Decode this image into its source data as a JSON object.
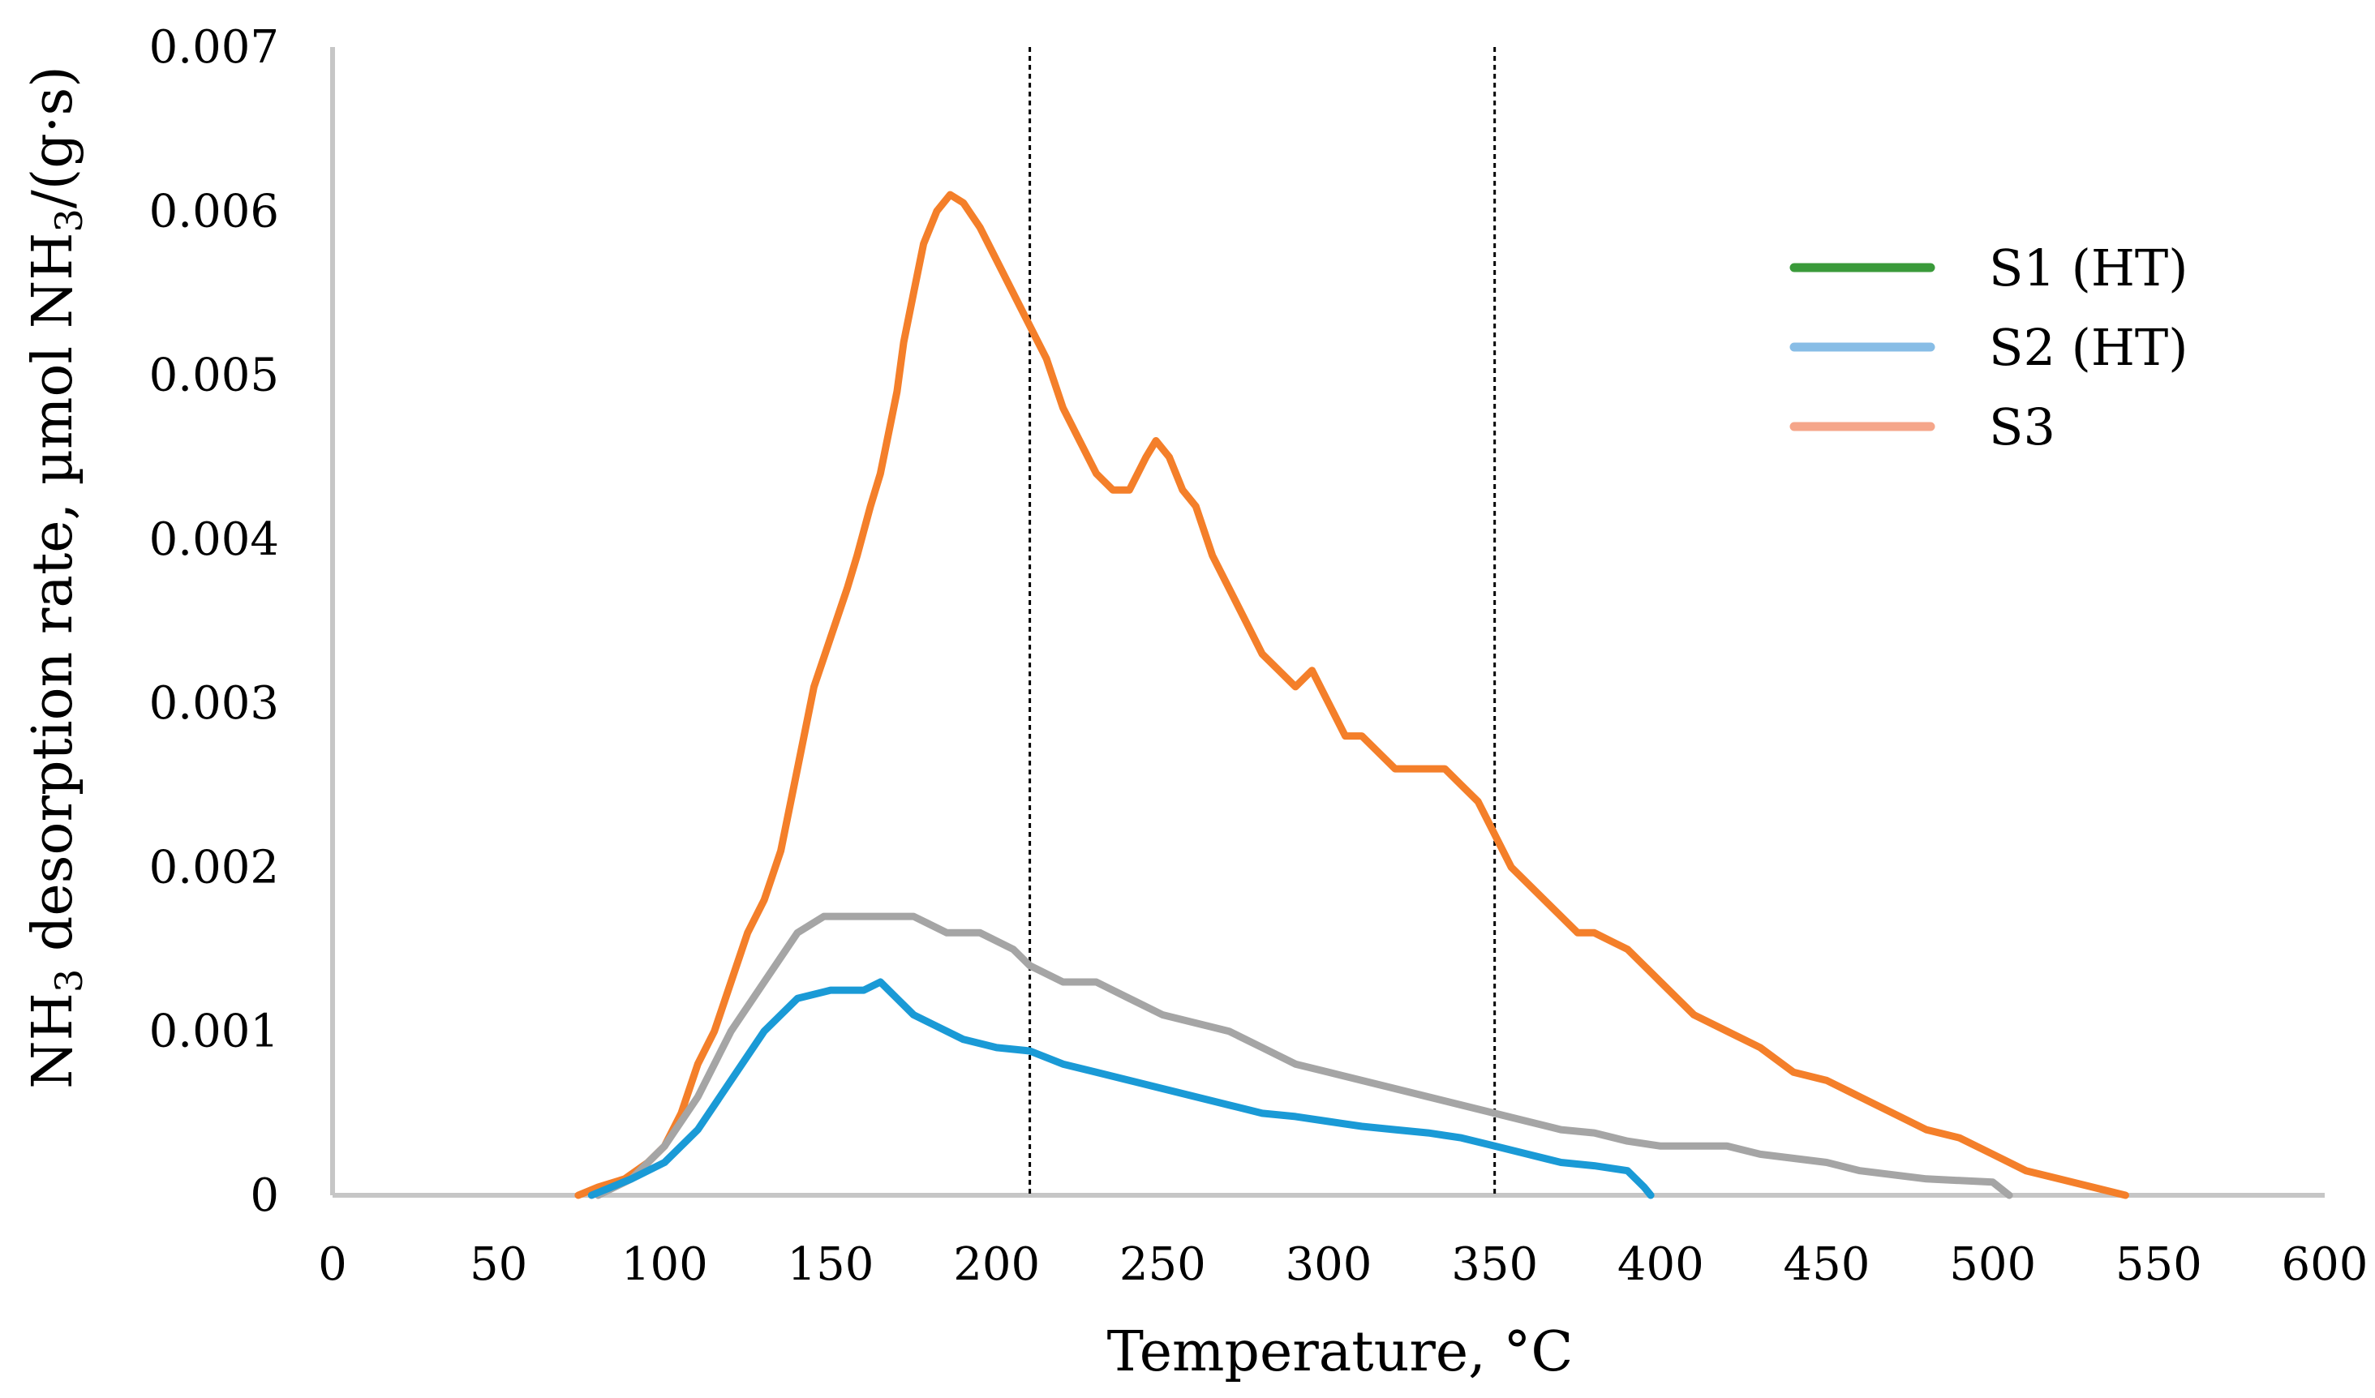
{
  "chart_data": {
    "type": "line",
    "xlabel": "Temperature, °C",
    "ylabel": {
      "parts": [
        {
          "text": "NH",
          "sub": false
        },
        {
          "text": "3",
          "sub": true
        },
        {
          "text": " desorption rate, µmol NH",
          "sub": false
        },
        {
          "text": "3",
          "sub": true
        },
        {
          "text": "/(g·s)",
          "sub": false
        }
      ]
    },
    "xlim": [
      0,
      600
    ],
    "ylim": [
      0,
      0.007
    ],
    "xticks": [
      0,
      50,
      100,
      150,
      200,
      250,
      300,
      350,
      400,
      450,
      500,
      550,
      600
    ],
    "yticks": [
      0,
      0.001,
      0.002,
      0.003,
      0.004,
      0.005,
      0.006,
      0.007
    ],
    "xtick_labels": [
      "0",
      "50",
      "100",
      "150",
      "200",
      "250",
      "300",
      "350",
      "400",
      "450",
      "500",
      "550",
      "600"
    ],
    "ytick_labels": [
      "0",
      "0.001",
      "0.002",
      "0.003",
      "0.004",
      "0.005",
      "0.006",
      "0.007"
    ],
    "vlines": [
      210,
      350
    ],
    "legend_position": "right",
    "legend": [
      {
        "label": "S1 (HT)",
        "color": "#3a9a3a"
      },
      {
        "label": "S2 (HT)",
        "color": "#88bde6"
      },
      {
        "label": "S3",
        "color": "#f5a68a"
      }
    ],
    "series": [
      {
        "name": "orange",
        "color": "#f47f2a",
        "points": [
          [
            74,
            0
          ],
          [
            80,
            5e-05
          ],
          [
            88,
            0.0001
          ],
          [
            95,
            0.0002
          ],
          [
            100,
            0.0003
          ],
          [
            105,
            0.0005
          ],
          [
            110,
            0.0008
          ],
          [
            115,
            0.001
          ],
          [
            120,
            0.0013
          ],
          [
            125,
            0.0016
          ],
          [
            130,
            0.0018
          ],
          [
            135,
            0.0021
          ],
          [
            140,
            0.0026
          ],
          [
            145,
            0.0031
          ],
          [
            150,
            0.0034
          ],
          [
            155,
            0.0037
          ],
          [
            158,
            0.0039
          ],
          [
            162,
            0.0042
          ],
          [
            165,
            0.0044
          ],
          [
            168,
            0.0047
          ],
          [
            170,
            0.0049
          ],
          [
            172,
            0.0052
          ],
          [
            175,
            0.0055
          ],
          [
            178,
            0.0058
          ],
          [
            182,
            0.006
          ],
          [
            186,
            0.0061
          ],
          [
            190,
            0.00605
          ],
          [
            195,
            0.0059
          ],
          [
            200,
            0.0057
          ],
          [
            205,
            0.0055
          ],
          [
            210,
            0.0053
          ],
          [
            215,
            0.0051
          ],
          [
            220,
            0.0048
          ],
          [
            225,
            0.0046
          ],
          [
            230,
            0.0044
          ],
          [
            235,
            0.0043
          ],
          [
            240,
            0.0043
          ],
          [
            245,
            0.0045
          ],
          [
            248,
            0.0046
          ],
          [
            252,
            0.0045
          ],
          [
            256,
            0.0043
          ],
          [
            260,
            0.0042
          ],
          [
            265,
            0.0039
          ],
          [
            270,
            0.0037
          ],
          [
            275,
            0.0035
          ],
          [
            280,
            0.0033
          ],
          [
            285,
            0.0032
          ],
          [
            290,
            0.0031
          ],
          [
            295,
            0.0032
          ],
          [
            300,
            0.003
          ],
          [
            305,
            0.0028
          ],
          [
            310,
            0.0028
          ],
          [
            315,
            0.0027
          ],
          [
            320,
            0.0026
          ],
          [
            325,
            0.0026
          ],
          [
            330,
            0.0026
          ],
          [
            335,
            0.0026
          ],
          [
            340,
            0.0025
          ],
          [
            345,
            0.0024
          ],
          [
            350,
            0.0022
          ],
          [
            355,
            0.002
          ],
          [
            360,
            0.0019
          ],
          [
            365,
            0.0018
          ],
          [
            370,
            0.0017
          ],
          [
            375,
            0.0016
          ],
          [
            380,
            0.0016
          ],
          [
            385,
            0.00155
          ],
          [
            390,
            0.0015
          ],
          [
            395,
            0.0014
          ],
          [
            400,
            0.0013
          ],
          [
            410,
            0.0011
          ],
          [
            420,
            0.001
          ],
          [
            430,
            0.0009
          ],
          [
            440,
            0.00075
          ],
          [
            450,
            0.0007
          ],
          [
            460,
            0.0006
          ],
          [
            470,
            0.0005
          ],
          [
            480,
            0.0004
          ],
          [
            490,
            0.00035
          ],
          [
            500,
            0.00025
          ],
          [
            510,
            0.00015
          ],
          [
            520,
            0.0001
          ],
          [
            530,
            5e-05
          ],
          [
            540,
            0
          ]
        ]
      },
      {
        "name": "gray",
        "color": "#a5a5a5",
        "points": [
          [
            80,
            0
          ],
          [
            90,
            0.0001
          ],
          [
            100,
            0.0003
          ],
          [
            110,
            0.0006
          ],
          [
            120,
            0.001
          ],
          [
            130,
            0.0013
          ],
          [
            140,
            0.0016
          ],
          [
            148,
            0.0017
          ],
          [
            155,
            0.0017
          ],
          [
            165,
            0.0017
          ],
          [
            175,
            0.0017
          ],
          [
            185,
            0.0016
          ],
          [
            195,
            0.0016
          ],
          [
            205,
            0.0015
          ],
          [
            210,
            0.0014
          ],
          [
            220,
            0.0013
          ],
          [
            230,
            0.0013
          ],
          [
            240,
            0.0012
          ],
          [
            250,
            0.0011
          ],
          [
            260,
            0.00105
          ],
          [
            270,
            0.001
          ],
          [
            280,
            0.0009
          ],
          [
            290,
            0.0008
          ],
          [
            300,
            0.00075
          ],
          [
            310,
            0.0007
          ],
          [
            320,
            0.00065
          ],
          [
            330,
            0.0006
          ],
          [
            340,
            0.00055
          ],
          [
            350,
            0.0005
          ],
          [
            360,
            0.00045
          ],
          [
            370,
            0.0004
          ],
          [
            380,
            0.00038
          ],
          [
            390,
            0.00033
          ],
          [
            400,
            0.0003
          ],
          [
            420,
            0.0003
          ],
          [
            430,
            0.00025
          ],
          [
            450,
            0.0002
          ],
          [
            460,
            0.00015
          ],
          [
            480,
            0.0001
          ],
          [
            500,
            8e-05
          ],
          [
            505,
            0
          ]
        ]
      },
      {
        "name": "blue",
        "color": "#1a9ad6",
        "points": [
          [
            78,
            0
          ],
          [
            90,
            0.0001
          ],
          [
            100,
            0.0002
          ],
          [
            110,
            0.0004
          ],
          [
            120,
            0.0007
          ],
          [
            130,
            0.001
          ],
          [
            140,
            0.0012
          ],
          [
            150,
            0.00125
          ],
          [
            160,
            0.00125
          ],
          [
            165,
            0.0013
          ],
          [
            170,
            0.0012
          ],
          [
            175,
            0.0011
          ],
          [
            180,
            0.00105
          ],
          [
            190,
            0.00095
          ],
          [
            200,
            0.0009
          ],
          [
            210,
            0.00088
          ],
          [
            220,
            0.0008
          ],
          [
            230,
            0.00075
          ],
          [
            240,
            0.0007
          ],
          [
            250,
            0.00065
          ],
          [
            260,
            0.0006
          ],
          [
            270,
            0.00055
          ],
          [
            280,
            0.0005
          ],
          [
            290,
            0.00048
          ],
          [
            300,
            0.00045
          ],
          [
            310,
            0.00042
          ],
          [
            320,
            0.0004
          ],
          [
            330,
            0.00038
          ],
          [
            340,
            0.00035
          ],
          [
            350,
            0.0003
          ],
          [
            360,
            0.00025
          ],
          [
            370,
            0.0002
          ],
          [
            380,
            0.00018
          ],
          [
            390,
            0.00015
          ],
          [
            395,
            5e-05
          ],
          [
            397,
            0
          ]
        ]
      }
    ]
  }
}
